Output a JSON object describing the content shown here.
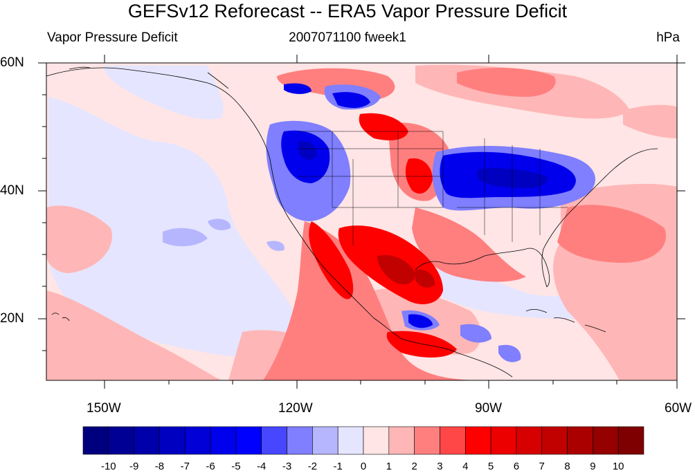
{
  "title": "GEFSv12 Reforecast -- ERA5 Vapor Pressure Deficit",
  "left_string": "Vapor Pressure Deficit",
  "center_string": "2007071100 fweek1",
  "right_string": "hPa",
  "map": {
    "projection": "cylindrical equidistant",
    "lon_range": [
      -160,
      -62
    ],
    "lat_range": [
      10,
      60
    ],
    "lon_ticks": [
      "150W",
      "120W",
      "90W",
      "60W"
    ],
    "lat_ticks": [
      "60N",
      "40N",
      "20N"
    ]
  },
  "colorbar": {
    "labels": [
      "-10",
      "-9",
      "-8",
      "-7",
      "-6",
      "-5",
      "-4",
      "-3",
      "-2",
      "-1",
      "0",
      "1",
      "2",
      "3",
      "4",
      "5",
      "6",
      "7",
      "8",
      "9",
      "10"
    ],
    "colors": [
      "#00007f",
      "#000095",
      "#0000ab",
      "#0000c1",
      "#0000d7",
      "#0000ed",
      "#0000ff",
      "#4747ff",
      "#7f7fff",
      "#b6b6ff",
      "#e5e5ff",
      "#ffe5e5",
      "#ffb6b6",
      "#ff7f7f",
      "#ff4747",
      "#ff0000",
      "#ed0000",
      "#d70000",
      "#c10000",
      "#ab0000",
      "#950000",
      "#7f0000"
    ]
  }
}
